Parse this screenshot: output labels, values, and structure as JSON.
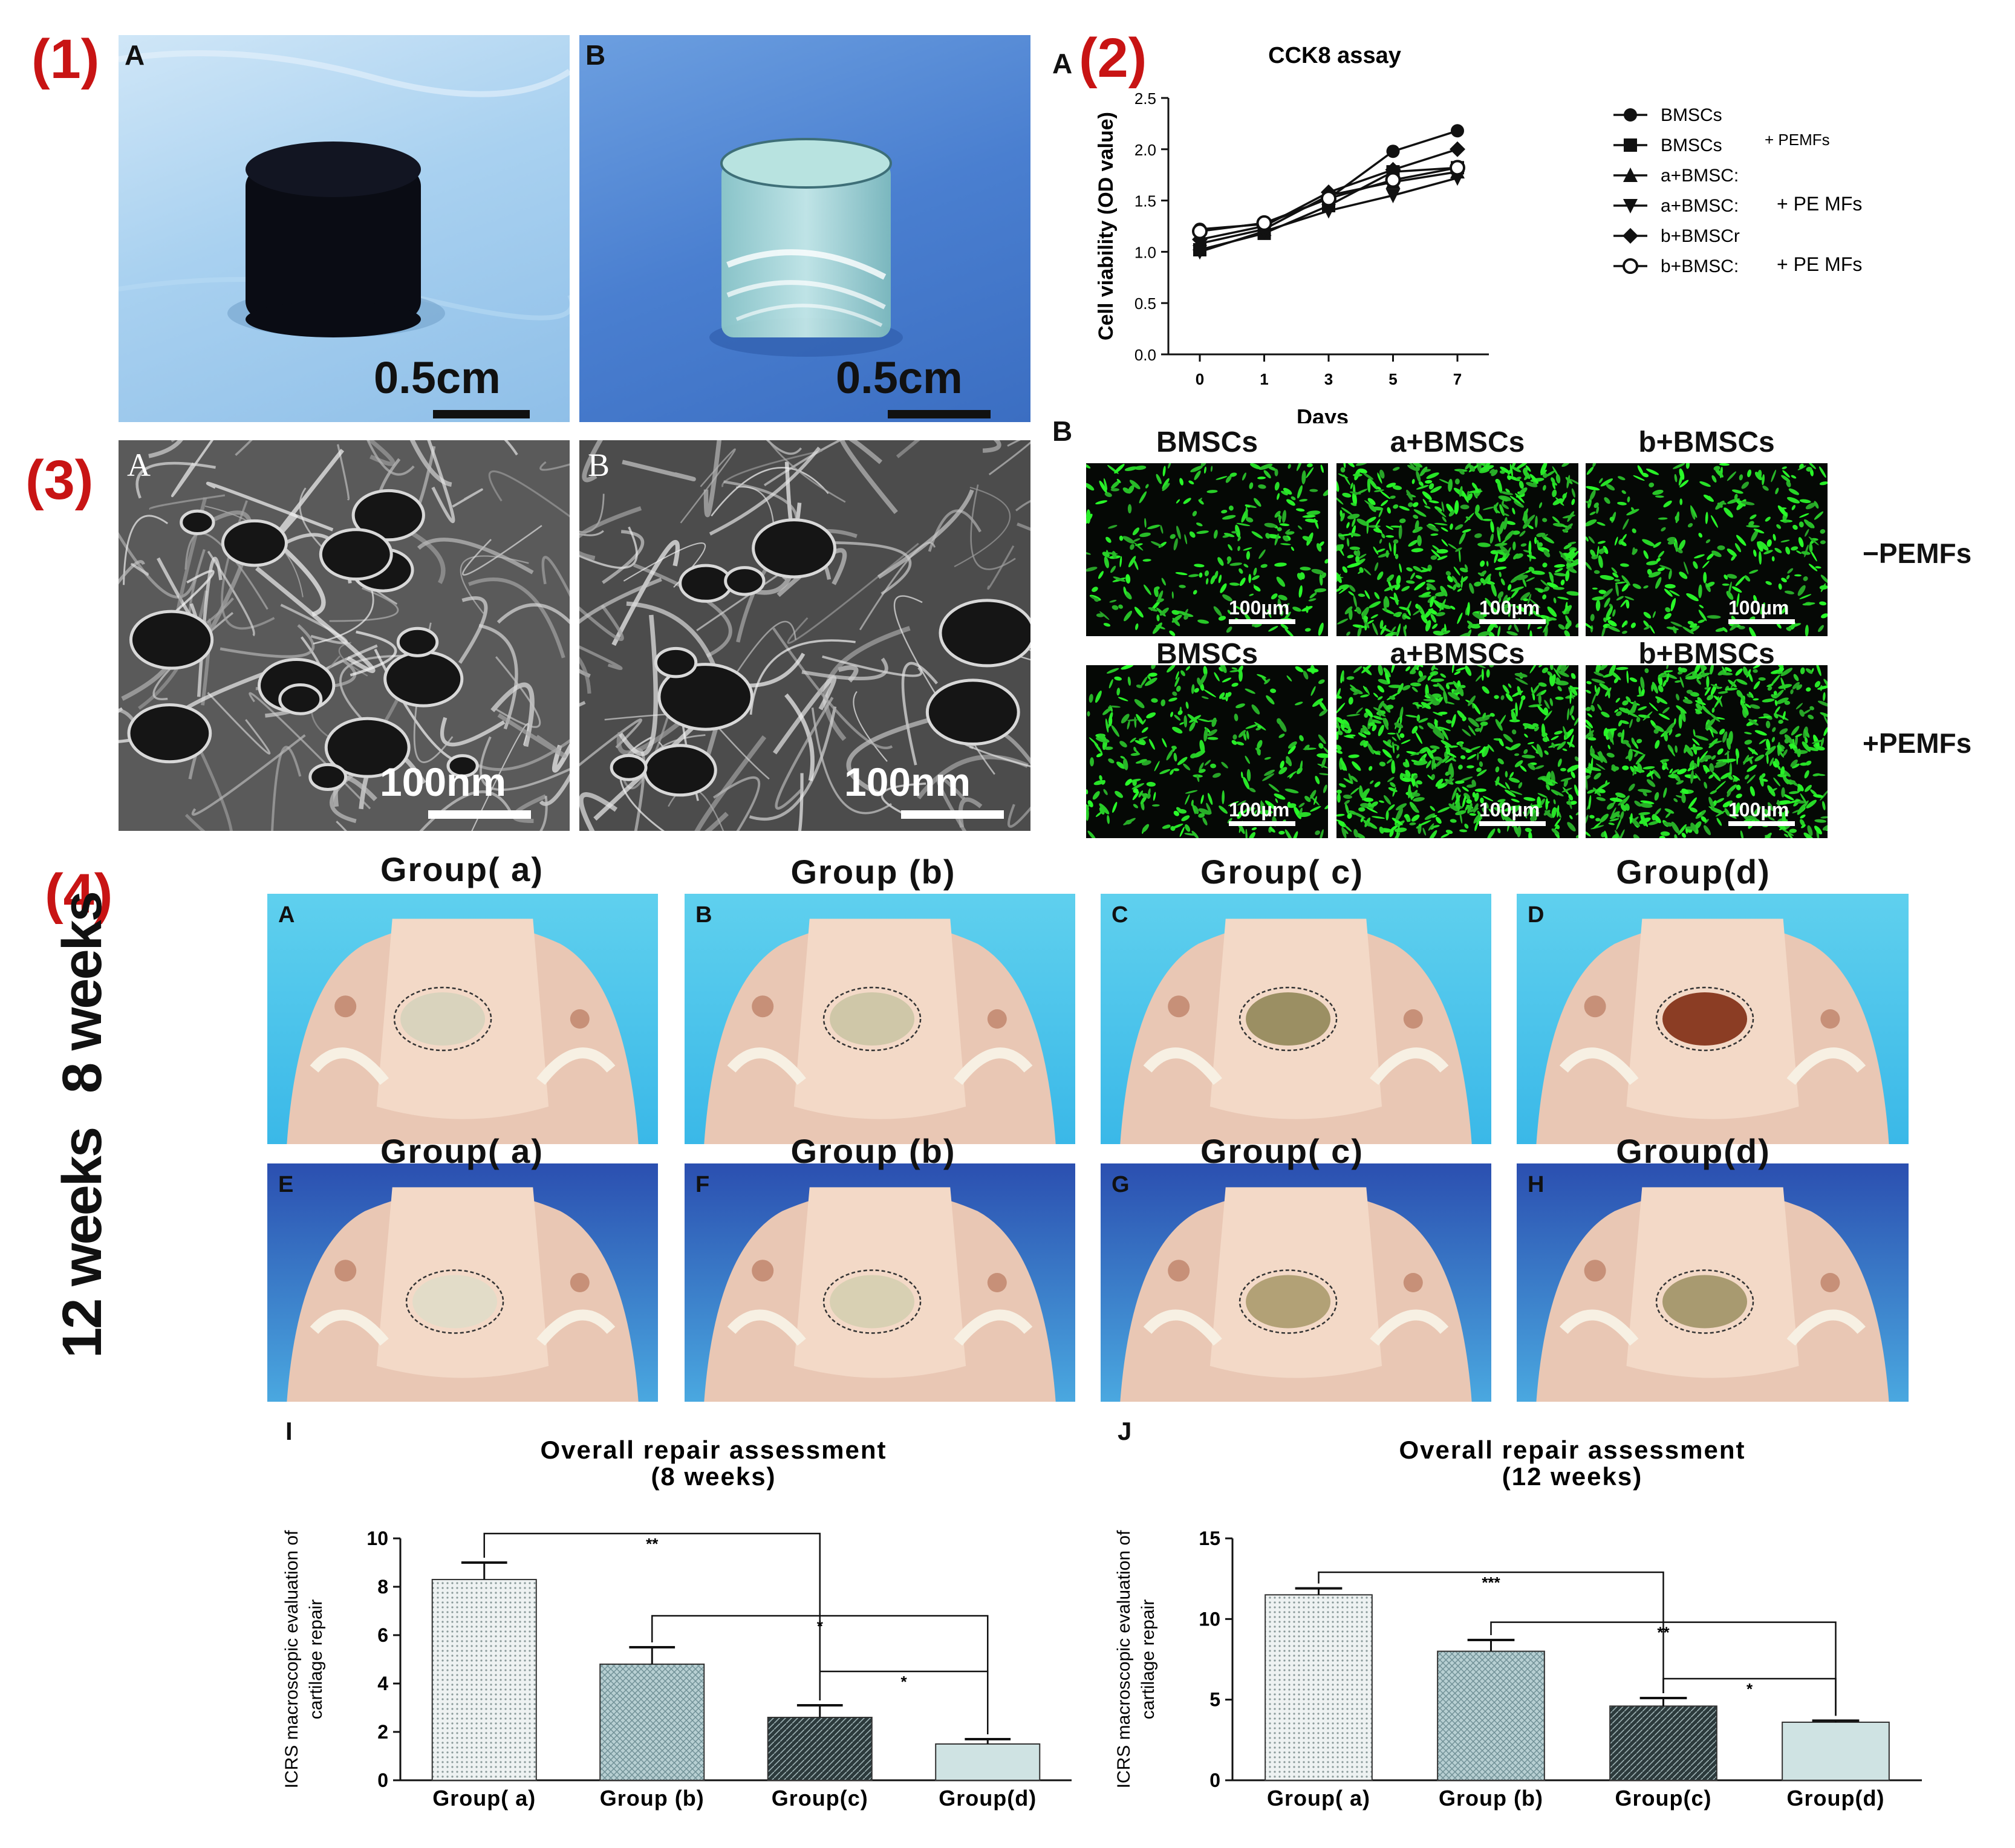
{
  "panel1": {
    "label": "(1)",
    "a": {
      "letter": "A",
      "scale": "0.5cm"
    },
    "b": {
      "letter": "B",
      "scale": "0.5cm"
    }
  },
  "panel2": {
    "label": "(2)",
    "sub_a": "A",
    "sub_b": "B",
    "fluor_row1_titles": [
      "BMSCs",
      "a+BMSCs",
      "b+BMSCs"
    ],
    "fluor_row2_titles": [
      "BMSCs",
      "a+BMSCs",
      "b+BMSCs"
    ],
    "fluor_row1_label": "−PEMFs",
    "fluor_row2_label": "+PEMFs",
    "fluor_scale": "100µm"
  },
  "panel3": {
    "label": "(3)",
    "a": {
      "letter": "A",
      "scale": "100nm"
    },
    "b": {
      "letter": "B",
      "scale": "100nm"
    }
  },
  "panel4": {
    "label": "(4)",
    "groups": [
      "Group( a)",
      "Group (b)",
      "Group( c)",
      "Group(d)"
    ],
    "row1_letters": [
      "A",
      "B",
      "C",
      "D"
    ],
    "row2_letters": [
      "E",
      "F",
      "G",
      "H"
    ],
    "row1_weeks": "8 weeks",
    "row2_weeks": "12 weeks",
    "sub_i": "I",
    "sub_j": "J"
  },
  "chart_data": [
    {
      "type": "line",
      "title": "CCK8 assay",
      "xlabel": "Days",
      "ylabel": "Cell viability (OD value)",
      "x": [
        "0",
        "1",
        "3",
        "5",
        "7"
      ],
      "ylim": [
        0,
        2.5
      ],
      "yticks": [
        "0.0",
        "0.5",
        "1.0",
        "1.5",
        "2.0",
        "2.5"
      ],
      "legend_position": "right",
      "series": [
        {
          "name": "BMSCs",
          "marker": "circle",
          "values": [
            1.22,
            1.27,
            1.52,
            1.98,
            2.18
          ]
        },
        {
          "name": "BMSCs",
          "suffix": "+ PEMFs",
          "marker": "square",
          "values": [
            1.02,
            1.18,
            1.45,
            1.78,
            1.82
          ]
        },
        {
          "name": "a+BMSC:",
          "marker": "triangle-up",
          "values": [
            1.08,
            1.22,
            1.55,
            1.68,
            1.78
          ]
        },
        {
          "name": "a+BMSC:",
          "suffix": "+ PE MFs",
          "marker": "triangle-down",
          "values": [
            1.0,
            1.2,
            1.4,
            1.55,
            1.72
          ]
        },
        {
          "name": "b+BMSCr",
          "marker": "diamond",
          "values": [
            1.12,
            1.25,
            1.58,
            1.8,
            2.0
          ]
        },
        {
          "name": "b+BMSC:",
          "suffix": "+ PE MFs",
          "marker": "open-circle",
          "values": [
            1.2,
            1.28,
            1.52,
            1.7,
            1.82
          ]
        }
      ]
    },
    {
      "type": "bar",
      "title": "Overall repair assessment",
      "subtitle": "(8 weeks)",
      "ylabel_line1": "ICRS macroscopic evaluation of",
      "ylabel_line2": "cartilage repair",
      "categories": [
        "Group( a)",
        "Group (b)",
        "Group(c)",
        "Group(d)"
      ],
      "values": [
        8.3,
        4.8,
        2.6,
        1.5
      ],
      "errors": [
        0.7,
        0.7,
        0.5,
        0.2
      ],
      "ylim": [
        0,
        10
      ],
      "yticks": [
        "0",
        "2",
        "4",
        "6",
        "8",
        "10"
      ],
      "significance": [
        "**",
        "*",
        "*"
      ]
    },
    {
      "type": "bar",
      "title": "Overall repair assessment",
      "subtitle": "(12 weeks)",
      "ylabel_line1": "ICRS macroscopic evaluation of",
      "ylabel_line2": "cartilage repair",
      "categories": [
        "Group( a)",
        "Group (b)",
        "Group(c)",
        "Group(d)"
      ],
      "values": [
        11.5,
        8.0,
        4.6,
        3.6
      ],
      "errors": [
        0.4,
        0.7,
        0.5,
        0.1
      ],
      "ylim": [
        0,
        15
      ],
      "yticks": [
        "0",
        "5",
        "10",
        "15"
      ],
      "significance": [
        "***",
        "**",
        "*"
      ]
    }
  ]
}
